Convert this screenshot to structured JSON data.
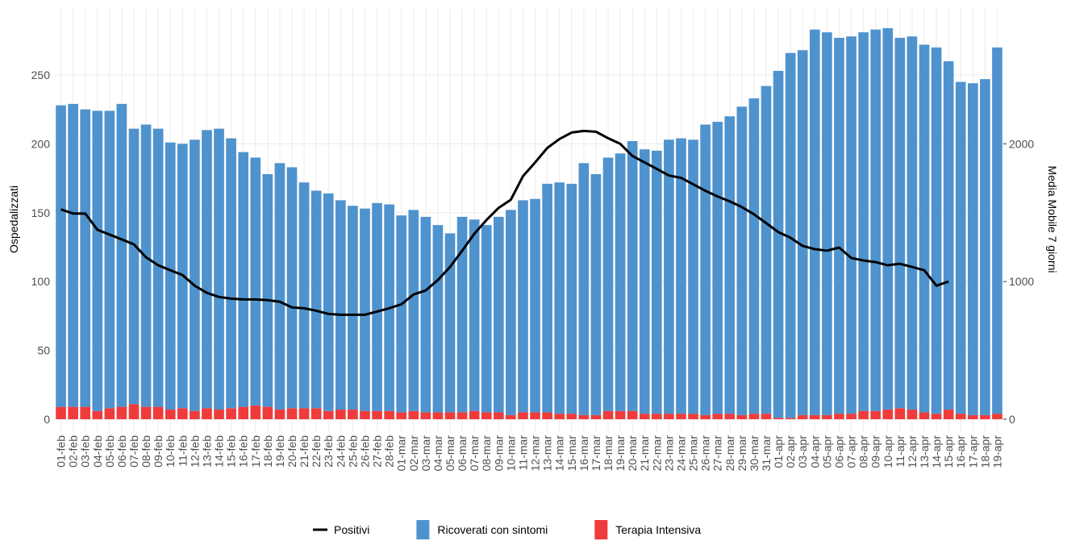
{
  "chart_data": {
    "type": "bar",
    "y_label": "Ospedalizzati",
    "y2_label": "Media Mobile 7 giorni",
    "categories": [
      "01-feb",
      "02-feb",
      "03-feb",
      "04-feb",
      "05-feb",
      "06-feb",
      "07-feb",
      "08-feb",
      "09-feb",
      "10-feb",
      "11-feb",
      "12-feb",
      "13-feb",
      "14-feb",
      "15-feb",
      "16-feb",
      "17-feb",
      "18-feb",
      "19-feb",
      "20-feb",
      "21-feb",
      "22-feb",
      "23-feb",
      "24-feb",
      "25-feb",
      "26-feb",
      "27-feb",
      "28-feb",
      "01-mar",
      "02-mar",
      "03-mar",
      "04-mar",
      "05-mar",
      "06-mar",
      "07-mar",
      "08-mar",
      "09-mar",
      "10-mar",
      "11-mar",
      "12-mar",
      "13-mar",
      "14-mar",
      "15-mar",
      "16-mar",
      "17-mar",
      "18-mar",
      "19-mar",
      "20-mar",
      "21-mar",
      "22-mar",
      "23-mar",
      "24-mar",
      "25-mar",
      "26-mar",
      "27-mar",
      "28-mar",
      "29-mar",
      "30-mar",
      "31-mar",
      "01-apr",
      "02-apr",
      "03-apr",
      "04-apr",
      "05-apr",
      "06-apr",
      "07-apr",
      "08-apr",
      "09-apr",
      "10-apr",
      "11-apr",
      "12-apr",
      "13-apr",
      "14-apr",
      "15-apr",
      "16-apr",
      "17-apr",
      "18-apr",
      "19-apr"
    ],
    "series": [
      {
        "name": "Positivi",
        "type": "line",
        "axis": "y2",
        "color": "#000000",
        "values": [
          1524,
          1494,
          1494,
          1376,
          1341,
          1306,
          1270,
          1176,
          1118,
          1082,
          1047,
          970,
          918,
          888,
          876,
          870,
          870,
          865,
          853,
          812,
          806,
          788,
          765,
          759,
          759,
          759,
          782,
          806,
          835,
          906,
          935,
          1011,
          1106,
          1224,
          1347,
          1447,
          1535,
          1594,
          1765,
          1865,
          1970,
          2035,
          2082,
          2094,
          2088,
          2041,
          2000,
          1912,
          1865,
          1818,
          1770,
          1753,
          1706,
          1659,
          1618,
          1582,
          1541,
          1488,
          1424,
          1359,
          1318,
          1259,
          1235,
          1224,
          1247,
          1171,
          1153,
          1141,
          1118,
          1129,
          1106,
          1082,
          970,
          1000,
          null,
          null,
          null,
          null
        ]
      },
      {
        "name": "Ricoverati con sintomi",
        "type": "bar",
        "color": "#4f93ce",
        "values": [
          219,
          220,
          216,
          218,
          216,
          220,
          200,
          205,
          202,
          194,
          192,
          197,
          202,
          204,
          196,
          185,
          180,
          169,
          179,
          175,
          164,
          158,
          158,
          152,
          148,
          147,
          151,
          150,
          143,
          146,
          142,
          136,
          130,
          142,
          139,
          136,
          142,
          149,
          154,
          155,
          166,
          168,
          167,
          183,
          175,
          184,
          187,
          196,
          192,
          191,
          199,
          200,
          199,
          211,
          212,
          216,
          224,
          229,
          238,
          252,
          265,
          265,
          280,
          278,
          273,
          274,
          275,
          277,
          277,
          269,
          271,
          267,
          266,
          253,
          241,
          241,
          244,
          266
        ]
      },
      {
        "name": "Terapia Intensiva",
        "type": "bar",
        "color": "#ef3b3b",
        "values": [
          9,
          9,
          9,
          6,
          8,
          9,
          11,
          9,
          9,
          7,
          8,
          6,
          8,
          7,
          8,
          9,
          10,
          9,
          7,
          8,
          8,
          8,
          6,
          7,
          7,
          6,
          6,
          6,
          5,
          6,
          5,
          5,
          5,
          5,
          6,
          5,
          5,
          3,
          5,
          5,
          5,
          4,
          4,
          3,
          3,
          6,
          6,
          6,
          4,
          4,
          4,
          4,
          4,
          3,
          4,
          4,
          3,
          4,
          4,
          1,
          1,
          3,
          3,
          3,
          4,
          4,
          6,
          6,
          7,
          8,
          7,
          5,
          4,
          7,
          4,
          3,
          3,
          4
        ]
      }
    ],
    "ylim": [
      -8.8,
      298.6
    ],
    "yticks": [
      0,
      50,
      100,
      150,
      200,
      250
    ],
    "y2lim": [
      -88,
      2986
    ],
    "y2ticks": [
      0,
      1000,
      2000
    ],
    "grid": true,
    "legend": "bottom"
  }
}
